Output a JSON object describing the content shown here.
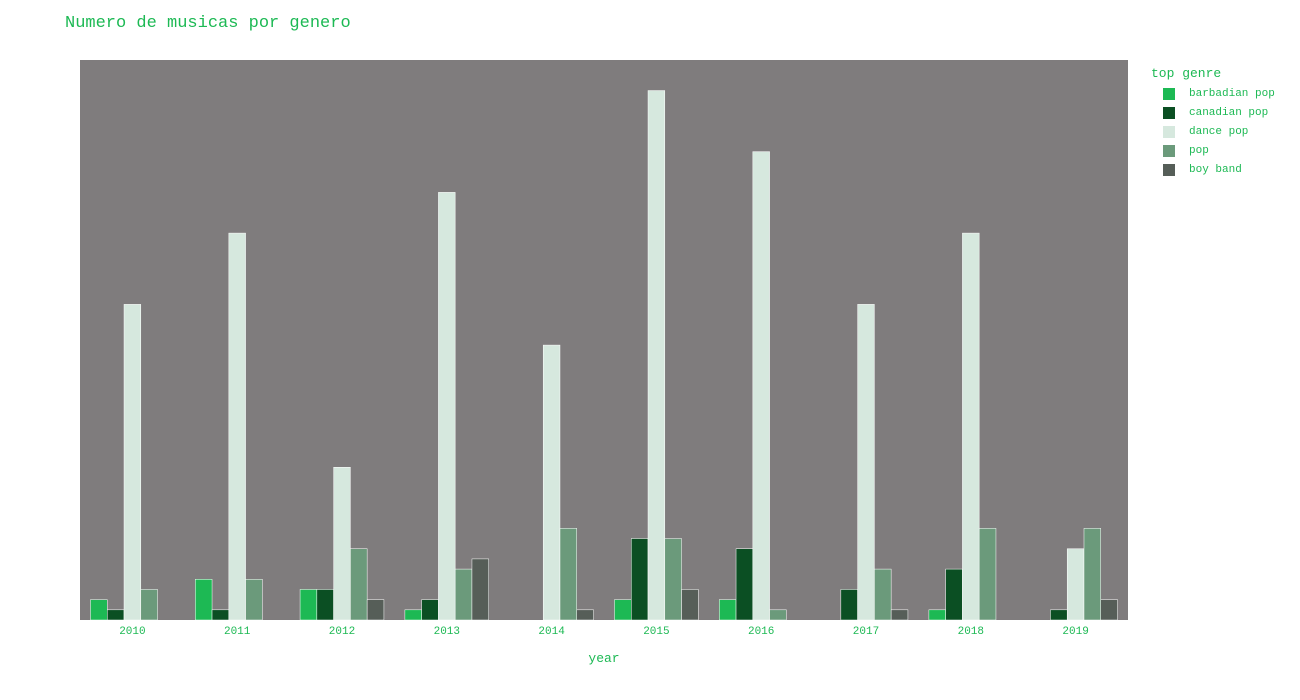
{
  "chart_data": {
    "type": "bar",
    "title": "Numero de musicas por genero",
    "xlabel": "year",
    "ylabel": "",
    "categories": [
      "2010",
      "2011",
      "2012",
      "2013",
      "2014",
      "2015",
      "2016",
      "2017",
      "2018",
      "2019"
    ],
    "ylim": [
      0,
      27.5
    ],
    "legend_title": "top genre",
    "legend_position": "top-right",
    "grid": false,
    "plot_background": "#7f7c7d",
    "series": [
      {
        "name": "barbadian pop",
        "color": "#1db954",
        "values": [
          1,
          2,
          1.5,
          0.5,
          0,
          1,
          1,
          0,
          0.5,
          0
        ]
      },
      {
        "name": "canadian pop",
        "color": "#0b4f23",
        "values": [
          0.5,
          0.5,
          1.5,
          1,
          0,
          4,
          3.5,
          1.5,
          2.5,
          0.5
        ]
      },
      {
        "name": "dance pop",
        "color": "#d6e8de",
        "values": [
          15.5,
          19,
          7.5,
          21,
          13.5,
          26,
          23,
          15.5,
          19,
          3.5
        ]
      },
      {
        "name": "pop",
        "color": "#6b9a7b",
        "values": [
          1.5,
          2,
          3.5,
          2.5,
          4.5,
          4,
          0.5,
          2.5,
          4.5,
          4.5
        ]
      },
      {
        "name": "boy band",
        "color": "#565e58",
        "values": [
          0,
          0,
          1,
          3,
          0.5,
          1.5,
          0,
          0.5,
          0,
          1
        ]
      }
    ]
  }
}
